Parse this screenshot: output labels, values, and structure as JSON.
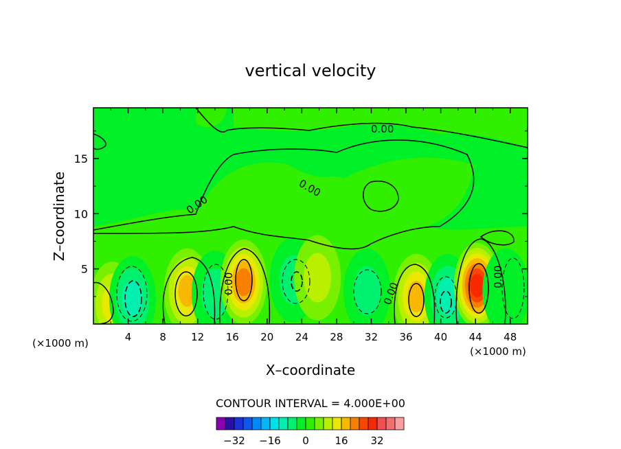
{
  "chart_data": {
    "type": "contour",
    "title": "vertical velocity",
    "xlabel": "X–coordinate",
    "ylabel": "Z–coordinate",
    "x_unit": "(×1000 m)",
    "z_unit": "(×1000 m)",
    "xlim": [
      0,
      50
    ],
    "ylim": [
      0,
      19.6
    ],
    "x_ticks": [
      4,
      8,
      12,
      16,
      20,
      24,
      28,
      32,
      36,
      40,
      44,
      48
    ],
    "y_ticks": [
      5,
      10,
      15
    ],
    "contour_interval_text": "CONTOUR INTERVAL = 4.000E+00",
    "contour_labels": [
      "0.00",
      "0.00",
      "0.00",
      "0.00",
      "0.00",
      "0.00"
    ],
    "colorbar": {
      "colors": [
        "#8a00b0",
        "#2a10a8",
        "#1a30d8",
        "#0a58f0",
        "#008af8",
        "#00b8f8",
        "#00e0e8",
        "#00f0b0",
        "#00f070",
        "#00f028",
        "#30f000",
        "#78f000",
        "#b8f000",
        "#e8e800",
        "#f8b800",
        "#f88000",
        "#f84800",
        "#f82800",
        "#f05050",
        "#f07070",
        "#f8a0a0"
      ],
      "tick_labels": [
        "−32",
        "−16",
        "0",
        "16",
        "32"
      ],
      "tick_values": [
        -32,
        -16,
        0,
        16,
        32
      ]
    },
    "cells": [
      {
        "x": 2.2,
        "z": 1.8,
        "value": 12
      },
      {
        "x": 4.5,
        "z": 2.3,
        "value": -10
      },
      {
        "x": 10.8,
        "z": 3.0,
        "value": 16
      },
      {
        "x": 14.0,
        "z": 2.8,
        "value": -6
      },
      {
        "x": 17.3,
        "z": 3.8,
        "value": 18
      },
      {
        "x": 23.0,
        "z": 4.0,
        "value": -6
      },
      {
        "x": 25.8,
        "z": 4.2,
        "value": 8
      },
      {
        "x": 31.5,
        "z": 3.0,
        "value": -6
      },
      {
        "x": 37.2,
        "z": 2.5,
        "value": 16
      },
      {
        "x": 40.8,
        "z": 2.5,
        "value": -10
      },
      {
        "x": 44.2,
        "z": 3.5,
        "value": 26
      },
      {
        "x": 47.5,
        "z": 3.0,
        "value": -4
      }
    ]
  }
}
